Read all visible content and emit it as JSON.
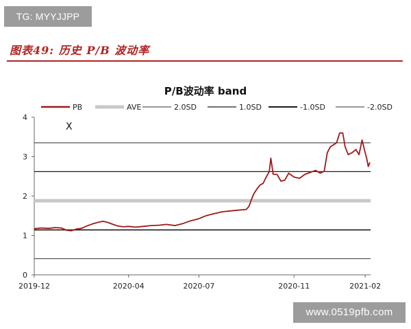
{
  "watermark_top": "TG: MYYJJPP",
  "figure_heading": "图表49: 历史 P/B 波动率",
  "watermark_bottom": "www.0519pfb.com",
  "chart_data": {
    "type": "line",
    "title": "P/B波动率 band",
    "xlabel": "",
    "ylabel": "",
    "x_tick_labels": [
      "2019-12",
      "2020-04",
      "2020-07",
      "2020-11",
      "2021-02"
    ],
    "x_ticks": [
      "2019-12-01",
      "2020-04-01",
      "2020-07-01",
      "2020-11-01",
      "2021-02-01"
    ],
    "xlim": [
      "2019-12-01",
      "2021-02-08"
    ],
    "y_ticks": [
      0,
      1,
      2,
      3,
      4
    ],
    "ylim": [
      0,
      4
    ],
    "grid": false,
    "legend": "top",
    "annotation": "X",
    "colors": {
      "pb": "#a01818",
      "ave": "#c8c8c8",
      "bands": "#1a1a1a",
      "band_light": "#333333"
    },
    "reference_lines": [
      {
        "name": "AVE",
        "value": 1.88
      },
      {
        "name": "2.0SD",
        "value": 3.35
      },
      {
        "name": "1.0SD",
        "value": 2.62
      },
      {
        "name": "-1.0SD",
        "value": 1.14
      },
      {
        "name": "-2.0SD",
        "value": 0.41
      }
    ],
    "series": [
      {
        "name": "PB",
        "points": [
          [
            "2019-12-01",
            1.17
          ],
          [
            "2019-12-10",
            1.19
          ],
          [
            "2019-12-20",
            1.18
          ],
          [
            "2019-12-28",
            1.2
          ],
          [
            "2020-01-05",
            1.19
          ],
          [
            "2020-01-12",
            1.13
          ],
          [
            "2020-01-18",
            1.12
          ],
          [
            "2020-01-24",
            1.16
          ],
          [
            "2020-01-31",
            1.18
          ],
          [
            "2020-02-07",
            1.24
          ],
          [
            "2020-02-14",
            1.29
          ],
          [
            "2020-02-21",
            1.33
          ],
          [
            "2020-02-28",
            1.36
          ],
          [
            "2020-03-05",
            1.33
          ],
          [
            "2020-03-12",
            1.28
          ],
          [
            "2020-03-18",
            1.24
          ],
          [
            "2020-03-25",
            1.22
          ],
          [
            "2020-04-01",
            1.23
          ],
          [
            "2020-04-10",
            1.21
          ],
          [
            "2020-04-20",
            1.23
          ],
          [
            "2020-04-30",
            1.25
          ],
          [
            "2020-05-10",
            1.26
          ],
          [
            "2020-05-20",
            1.28
          ],
          [
            "2020-05-31",
            1.25
          ],
          [
            "2020-06-10",
            1.3
          ],
          [
            "2020-06-20",
            1.37
          ],
          [
            "2020-06-30",
            1.42
          ],
          [
            "2020-07-10",
            1.5
          ],
          [
            "2020-07-20",
            1.55
          ],
          [
            "2020-07-31",
            1.6
          ],
          [
            "2020-08-10",
            1.62
          ],
          [
            "2020-08-20",
            1.64
          ],
          [
            "2020-08-31",
            1.66
          ],
          [
            "2020-09-03",
            1.72
          ],
          [
            "2020-09-05",
            1.8
          ],
          [
            "2020-09-07",
            1.92
          ],
          [
            "2020-09-10",
            2.06
          ],
          [
            "2020-09-14",
            2.18
          ],
          [
            "2020-09-18",
            2.28
          ],
          [
            "2020-09-22",
            2.32
          ],
          [
            "2020-09-26",
            2.48
          ],
          [
            "2020-09-30",
            2.62
          ],
          [
            "2020-10-02",
            2.96
          ],
          [
            "2020-10-05",
            2.55
          ],
          [
            "2020-10-10",
            2.55
          ],
          [
            "2020-10-15",
            2.38
          ],
          [
            "2020-10-20",
            2.4
          ],
          [
            "2020-10-25",
            2.58
          ],
          [
            "2020-11-01",
            2.48
          ],
          [
            "2020-11-08",
            2.45
          ],
          [
            "2020-11-15",
            2.55
          ],
          [
            "2020-11-22",
            2.6
          ],
          [
            "2020-11-29",
            2.65
          ],
          [
            "2020-12-05",
            2.58
          ],
          [
            "2020-12-10",
            2.63
          ],
          [
            "2020-12-14",
            3.1
          ],
          [
            "2020-12-18",
            3.25
          ],
          [
            "2020-12-22",
            3.3
          ],
          [
            "2020-12-26",
            3.35
          ],
          [
            "2020-12-30",
            3.6
          ],
          [
            "2021-01-03",
            3.6
          ],
          [
            "2021-01-06",
            3.25
          ],
          [
            "2021-01-10",
            3.05
          ],
          [
            "2021-01-15",
            3.1
          ],
          [
            "2021-01-20",
            3.18
          ],
          [
            "2021-01-24",
            3.05
          ],
          [
            "2021-01-28",
            3.42
          ],
          [
            "2021-02-01",
            3.1
          ],
          [
            "2021-02-03",
            2.95
          ],
          [
            "2021-02-05",
            2.75
          ],
          [
            "2021-02-07",
            2.85
          ]
        ]
      }
    ]
  }
}
